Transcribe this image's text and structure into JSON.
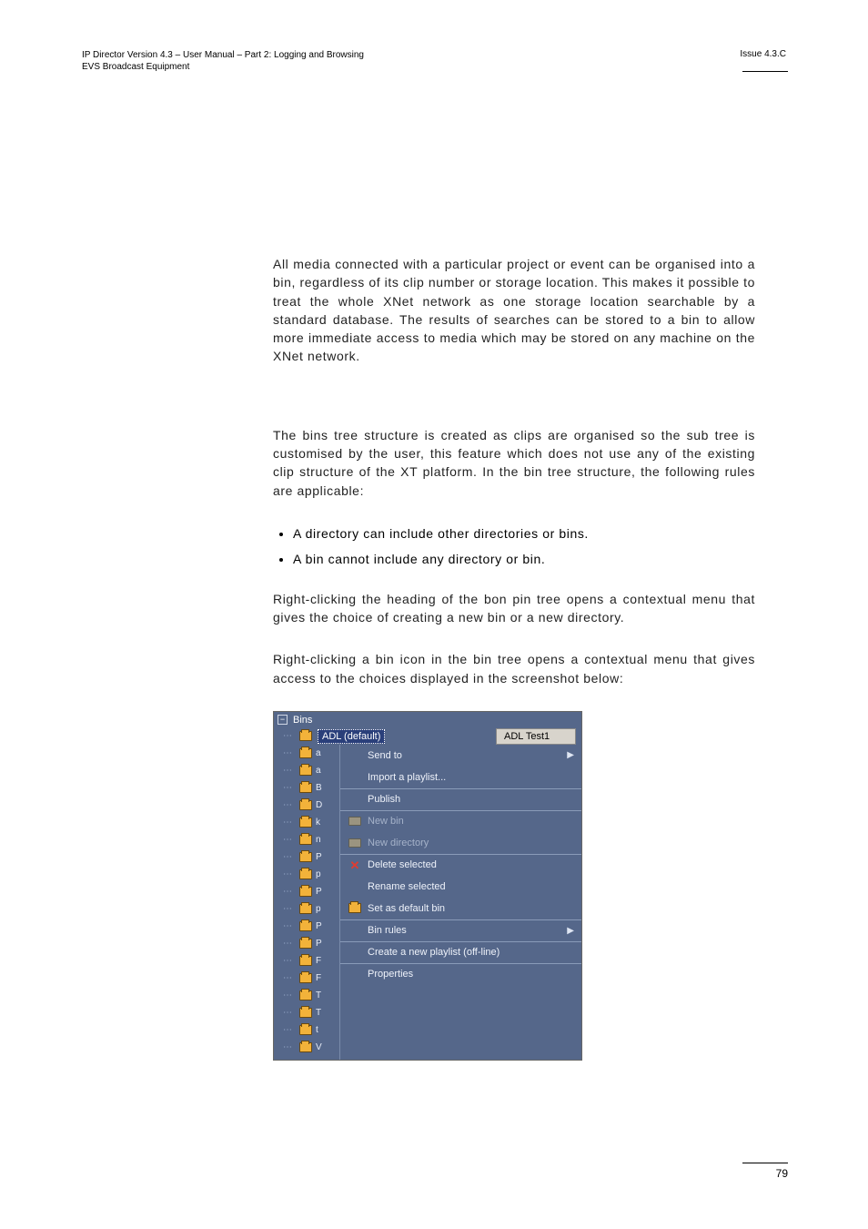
{
  "header": {
    "left_line1": "IP Director Version 4.3 – User Manual – Part 2: Logging and Browsing",
    "left_line2": "EVS Broadcast Equipment",
    "right": "Issue 4.3.C"
  },
  "paragraphs": {
    "p1": "All media connected with a particular project or event can be organised into a bin, regardless of its clip number or storage location. This makes it possible to treat the whole XNet network as one storage location searchable by a standard database. The results of searches can be stored to a bin to allow more immediate access to media which may be stored on any machine on the XNet network.",
    "p2": "The bins tree structure is created as clips are organised so the sub tree is customised by the user, this feature which does not use any of the existing clip structure of the XT platform. In the bin tree structure, the following rules are applicable:",
    "b1": "A directory can include other directories or bins.",
    "b2": "A bin cannot include any directory or bin.",
    "p3": "Right-clicking the heading of the bon pin tree opens a contextual menu that gives the choice of creating a new bin or a new directory.",
    "p4": "Right-clicking a bin icon in the bin tree opens a contextual menu that gives access to the choices displayed in the screenshot below:"
  },
  "screenshot": {
    "bins_label": "Bins",
    "selected_label": "ADL (default)",
    "tab_label": "ADL Test1",
    "tree_bg": "#55678a",
    "tree_items": [
      "a",
      "a",
      "B",
      "D",
      "k",
      "n",
      "P",
      "p",
      "P",
      "p",
      "P",
      "P",
      "F",
      "F",
      "T",
      "T",
      "t",
      "V"
    ],
    "menu": [
      {
        "label": "Send to",
        "icon": "",
        "arrow": true,
        "disabled": false,
        "sep": false
      },
      {
        "label": "Import a playlist...",
        "icon": "",
        "arrow": false,
        "disabled": false,
        "sep": false
      },
      {
        "label": "Publish",
        "icon": "",
        "arrow": false,
        "disabled": false,
        "sep": true
      },
      {
        "label": "New bin",
        "icon": "folder",
        "arrow": false,
        "disabled": true,
        "sep": true
      },
      {
        "label": "New directory",
        "icon": "folder",
        "arrow": false,
        "disabled": true,
        "sep": false
      },
      {
        "label": "Delete selected",
        "icon": "x",
        "arrow": false,
        "disabled": false,
        "sep": true
      },
      {
        "label": "Rename selected",
        "icon": "",
        "arrow": false,
        "disabled": false,
        "sep": false
      },
      {
        "label": "Set as default bin",
        "icon": "bin",
        "arrow": false,
        "disabled": false,
        "sep": false
      },
      {
        "label": "Bin rules",
        "icon": "",
        "arrow": true,
        "disabled": false,
        "sep": true
      },
      {
        "label": "Create a new playlist (off-line)",
        "icon": "",
        "arrow": false,
        "disabled": false,
        "sep": true
      },
      {
        "label": "Properties",
        "icon": "",
        "arrow": false,
        "disabled": false,
        "sep": true
      }
    ]
  },
  "footer": {
    "page": "79"
  },
  "colors": {
    "text": "#222222",
    "tree_bg": "#55678a",
    "menu_text": "#eef2fa",
    "menu_disabled": "#a5b2c9",
    "bin_icon": "#f2b23a",
    "x_icon": "#e23b2e",
    "tab_bg": "#d8d4cc",
    "sel_bg": "#2a3f7a"
  }
}
